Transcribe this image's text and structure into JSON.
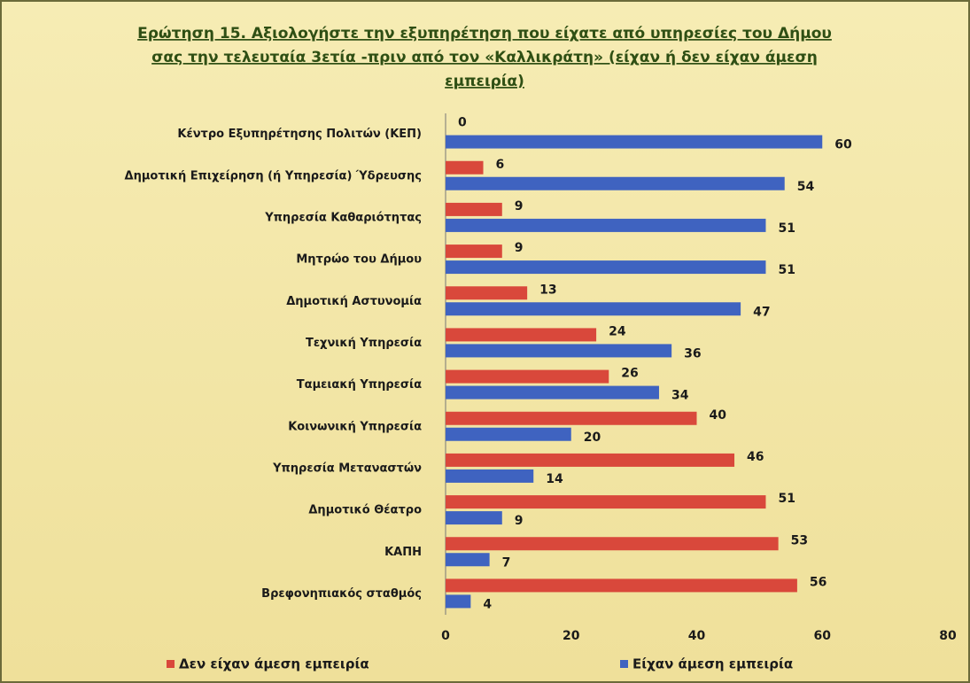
{
  "chart_data": {
    "type": "bar",
    "orientation": "horizontal",
    "title": [
      "Ερώτηση 15. Αξιολογήστε την εξυπηρέτηση που είχατε από υπηρεσίες του Δήμου",
      "σας την τελευταία 3ετία -πριν από τον «Καλλικράτη» (είχαν ή δεν είχαν άμεση",
      "εμπειρία)"
    ],
    "categories": [
      "Κέντρο Εξυπηρέτησης Πολιτών (ΚΕΠ)",
      "Δημοτική Επιχείρηση (ή Υπηρεσία) Ύδρευσης",
      "Υπηρεσία Καθαριότητας",
      "Μητρώο του Δήμου",
      "Δημοτική Αστυνομία",
      "Τεχνική Υπηρεσία",
      "Ταμειακή Υπηρεσία",
      "Κοινωνική Υπηρεσία",
      "Υπηρεσία Μεταναστών",
      "Δημοτικό Θέατρο",
      "ΚΑΠΗ",
      "Βρεφονηπιακός σταθμός"
    ],
    "series": [
      {
        "name": "Δεν είχαν άμεση εμπειρία",
        "color": "#d9483b",
        "values": [
          0,
          6,
          9,
          9,
          13,
          24,
          26,
          40,
          46,
          51,
          53,
          56
        ]
      },
      {
        "name": "Είχαν άμεση εμπειρία",
        "color": "#3f63c0",
        "values": [
          60,
          54,
          51,
          51,
          47,
          36,
          34,
          20,
          14,
          9,
          7,
          4
        ]
      }
    ],
    "xlim": [
      0,
      80
    ],
    "xticks": [
      0,
      20,
      40,
      60,
      80
    ]
  }
}
